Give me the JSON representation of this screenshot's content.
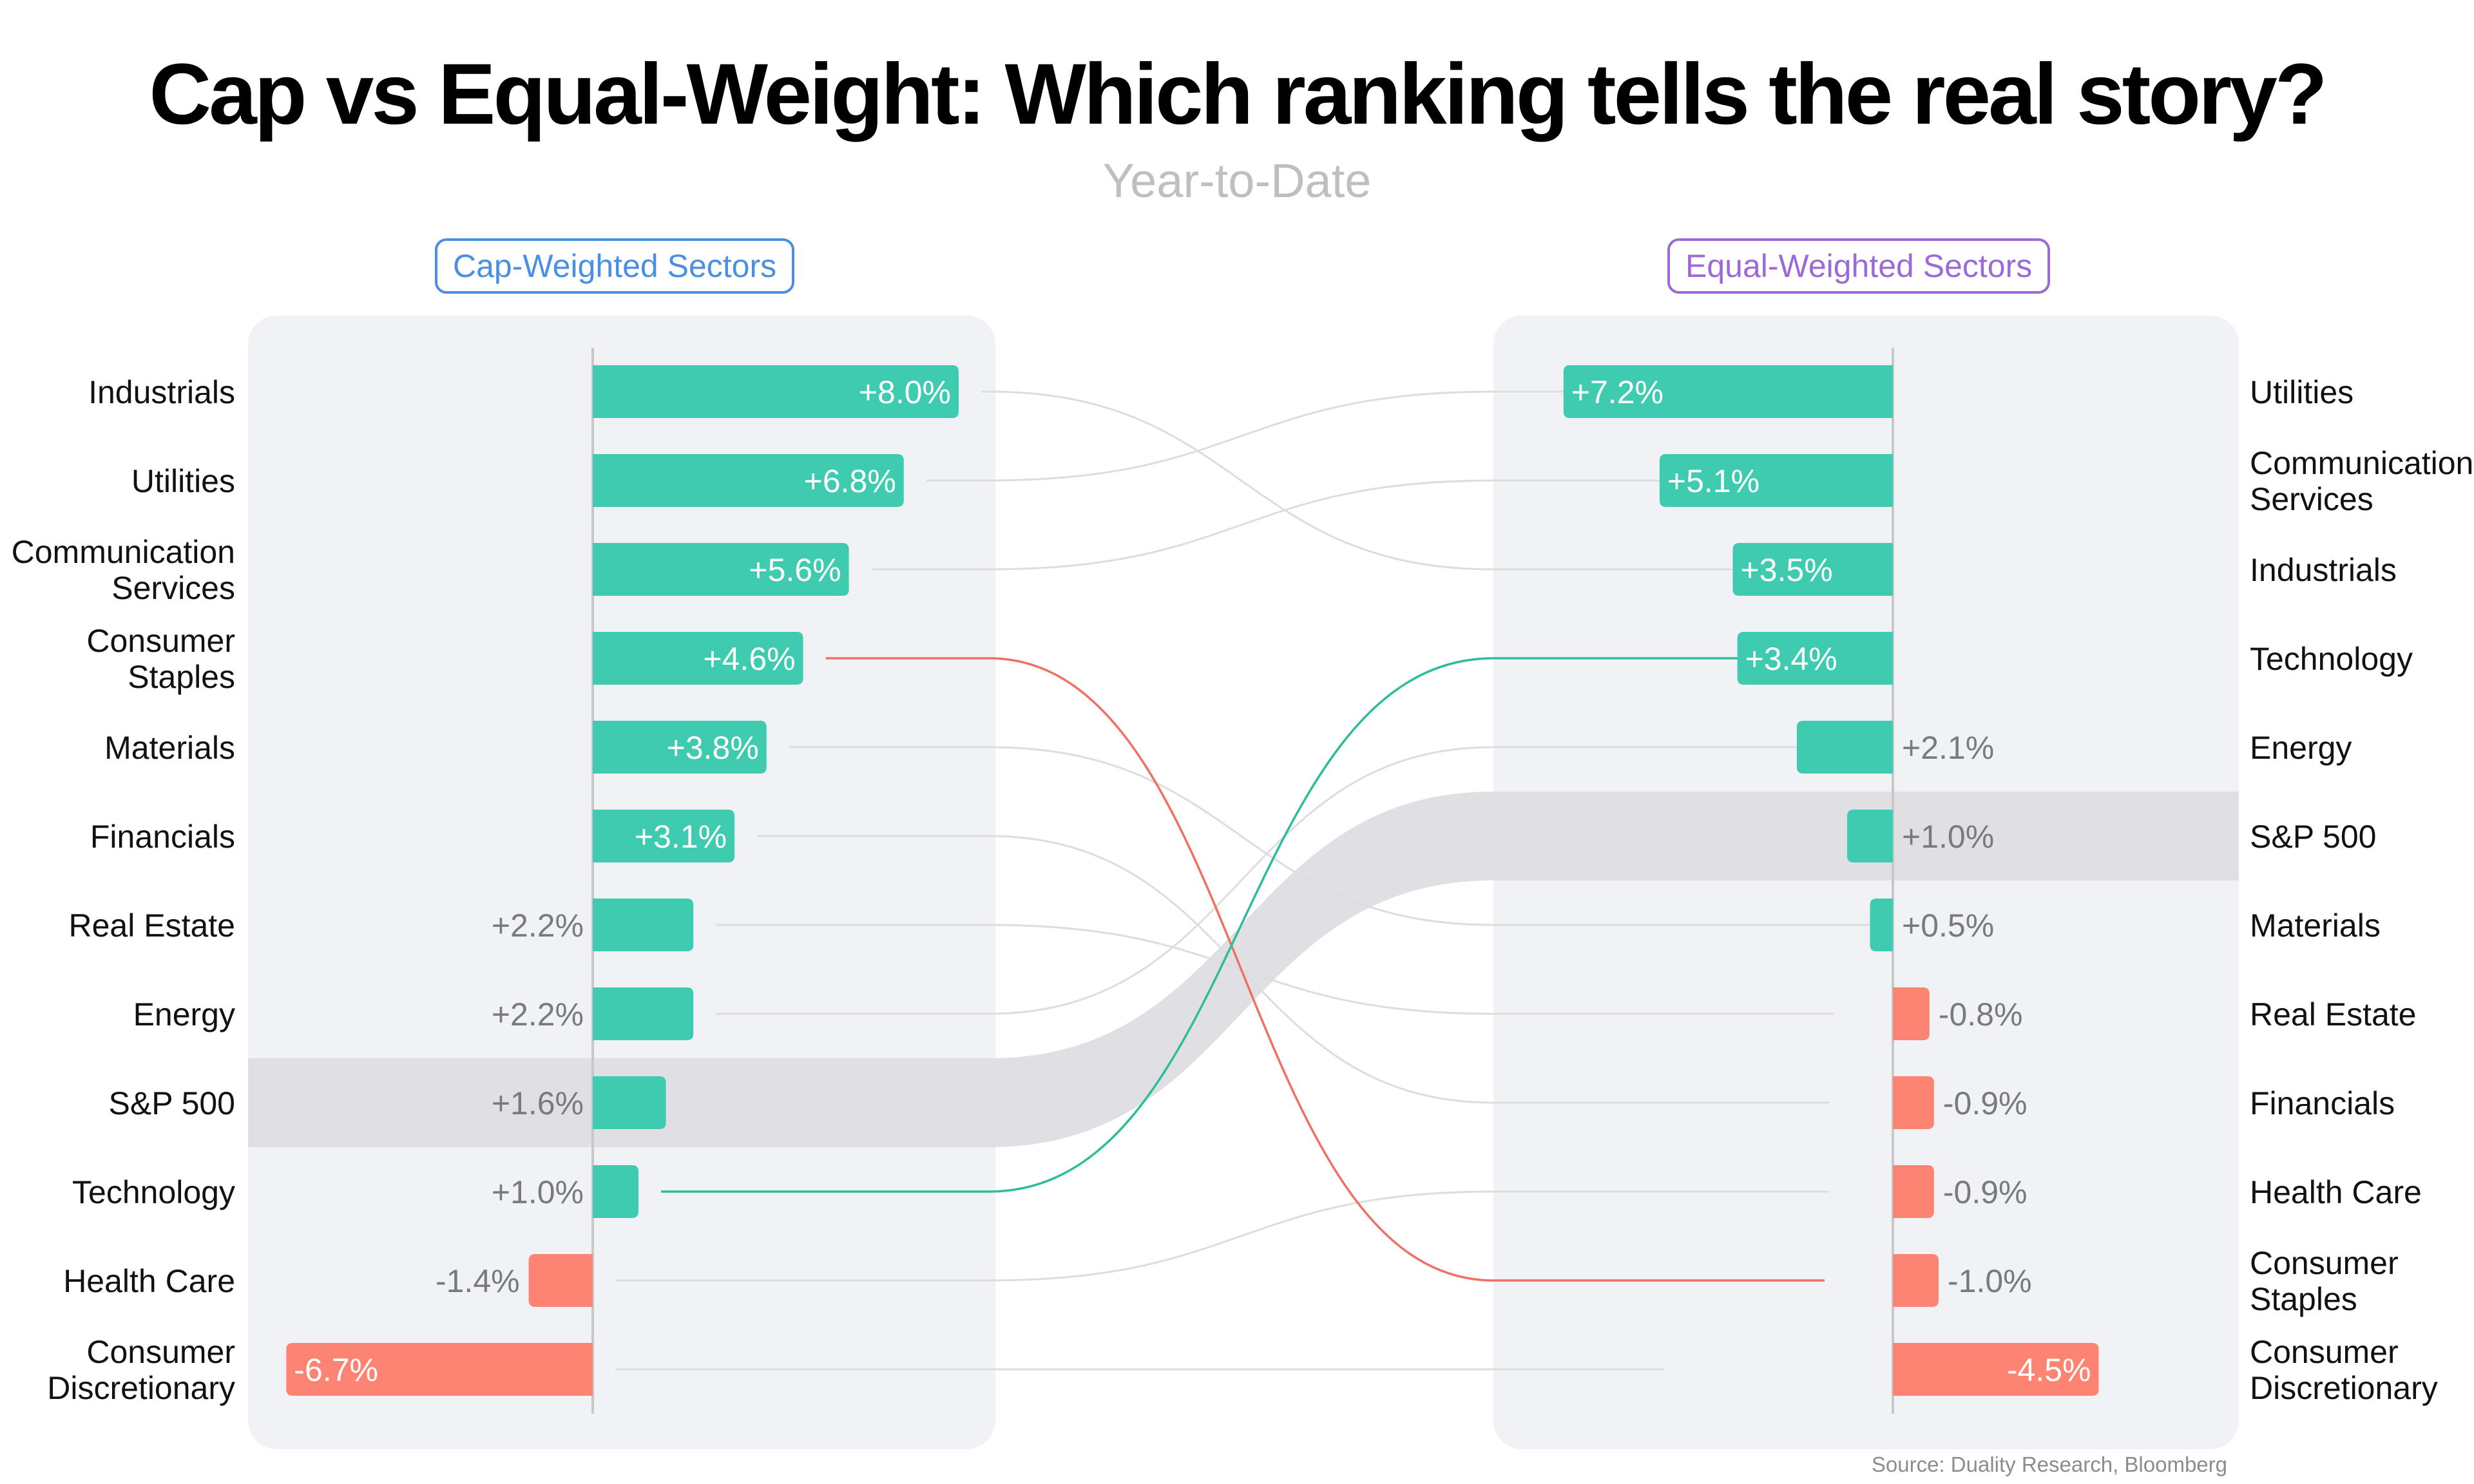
{
  "title": "Cap vs Equal-Weight: Which ranking tells the real story?",
  "subtitle": "Year-to-Date",
  "left_panel_label": "Cap-Weighted Sectors",
  "right_panel_label": "Equal-Weighted Sectors",
  "source": "Source: Duality Research, Bloomberg",
  "colors": {
    "positive": "#3ecbb0",
    "negative": "#fd8473",
    "panel": "#f1f2f6",
    "highlight": "#e0e0e4",
    "rise_link": "#2ebd9b",
    "fall_link": "#f07063",
    "neutral_link": "#dddddd",
    "left_tag": "#4a90e2",
    "right_tag": "#9b6ad8"
  },
  "chart_data": {
    "type": "bar",
    "layout": "slope-ranking",
    "highlight_category": "S&P 500",
    "series": [
      {
        "name": "Cap-Weighted Sectors",
        "categories": [
          "Industrials",
          "Utilities",
          "Communication Services",
          "Consumer Staples",
          "Materials",
          "Financials",
          "Real Estate",
          "Energy",
          "S&P 500",
          "Technology",
          "Health Care",
          "Consumer Discretionary"
        ],
        "values": [
          8.0,
          6.8,
          5.6,
          4.6,
          3.8,
          3.1,
          2.2,
          2.2,
          1.6,
          1.0,
          -1.4,
          -6.7
        ],
        "labels": [
          "+8.0%",
          "+6.8%",
          "+5.6%",
          "+4.6%",
          "+3.8%",
          "+3.1%",
          "+2.2%",
          "+2.2%",
          "+1.6%",
          "+1.0%",
          "-1.4%",
          "-6.7%"
        ]
      },
      {
        "name": "Equal-Weighted Sectors",
        "categories": [
          "Utilities",
          "Communication Services",
          "Industrials",
          "Technology",
          "Energy",
          "S&P 500",
          "Materials",
          "Real Estate",
          "Financials",
          "Health Care",
          "Consumer Staples",
          "Consumer Discretionary"
        ],
        "values": [
          7.2,
          5.1,
          3.5,
          3.4,
          2.1,
          1.0,
          0.5,
          -0.8,
          -0.9,
          -0.9,
          -1.0,
          -4.5
        ],
        "labels": [
          "+7.2%",
          "+5.1%",
          "+3.5%",
          "+3.4%",
          "+2.1%",
          "+1.0%",
          "+0.5%",
          "-0.8%",
          "-0.9%",
          "-0.9%",
          "-1.0%",
          "-4.5%"
        ]
      }
    ],
    "emphasized_links": [
      {
        "category": "Technology",
        "direction": "rise"
      },
      {
        "category": "Consumer Staples",
        "direction": "fall"
      }
    ]
  }
}
